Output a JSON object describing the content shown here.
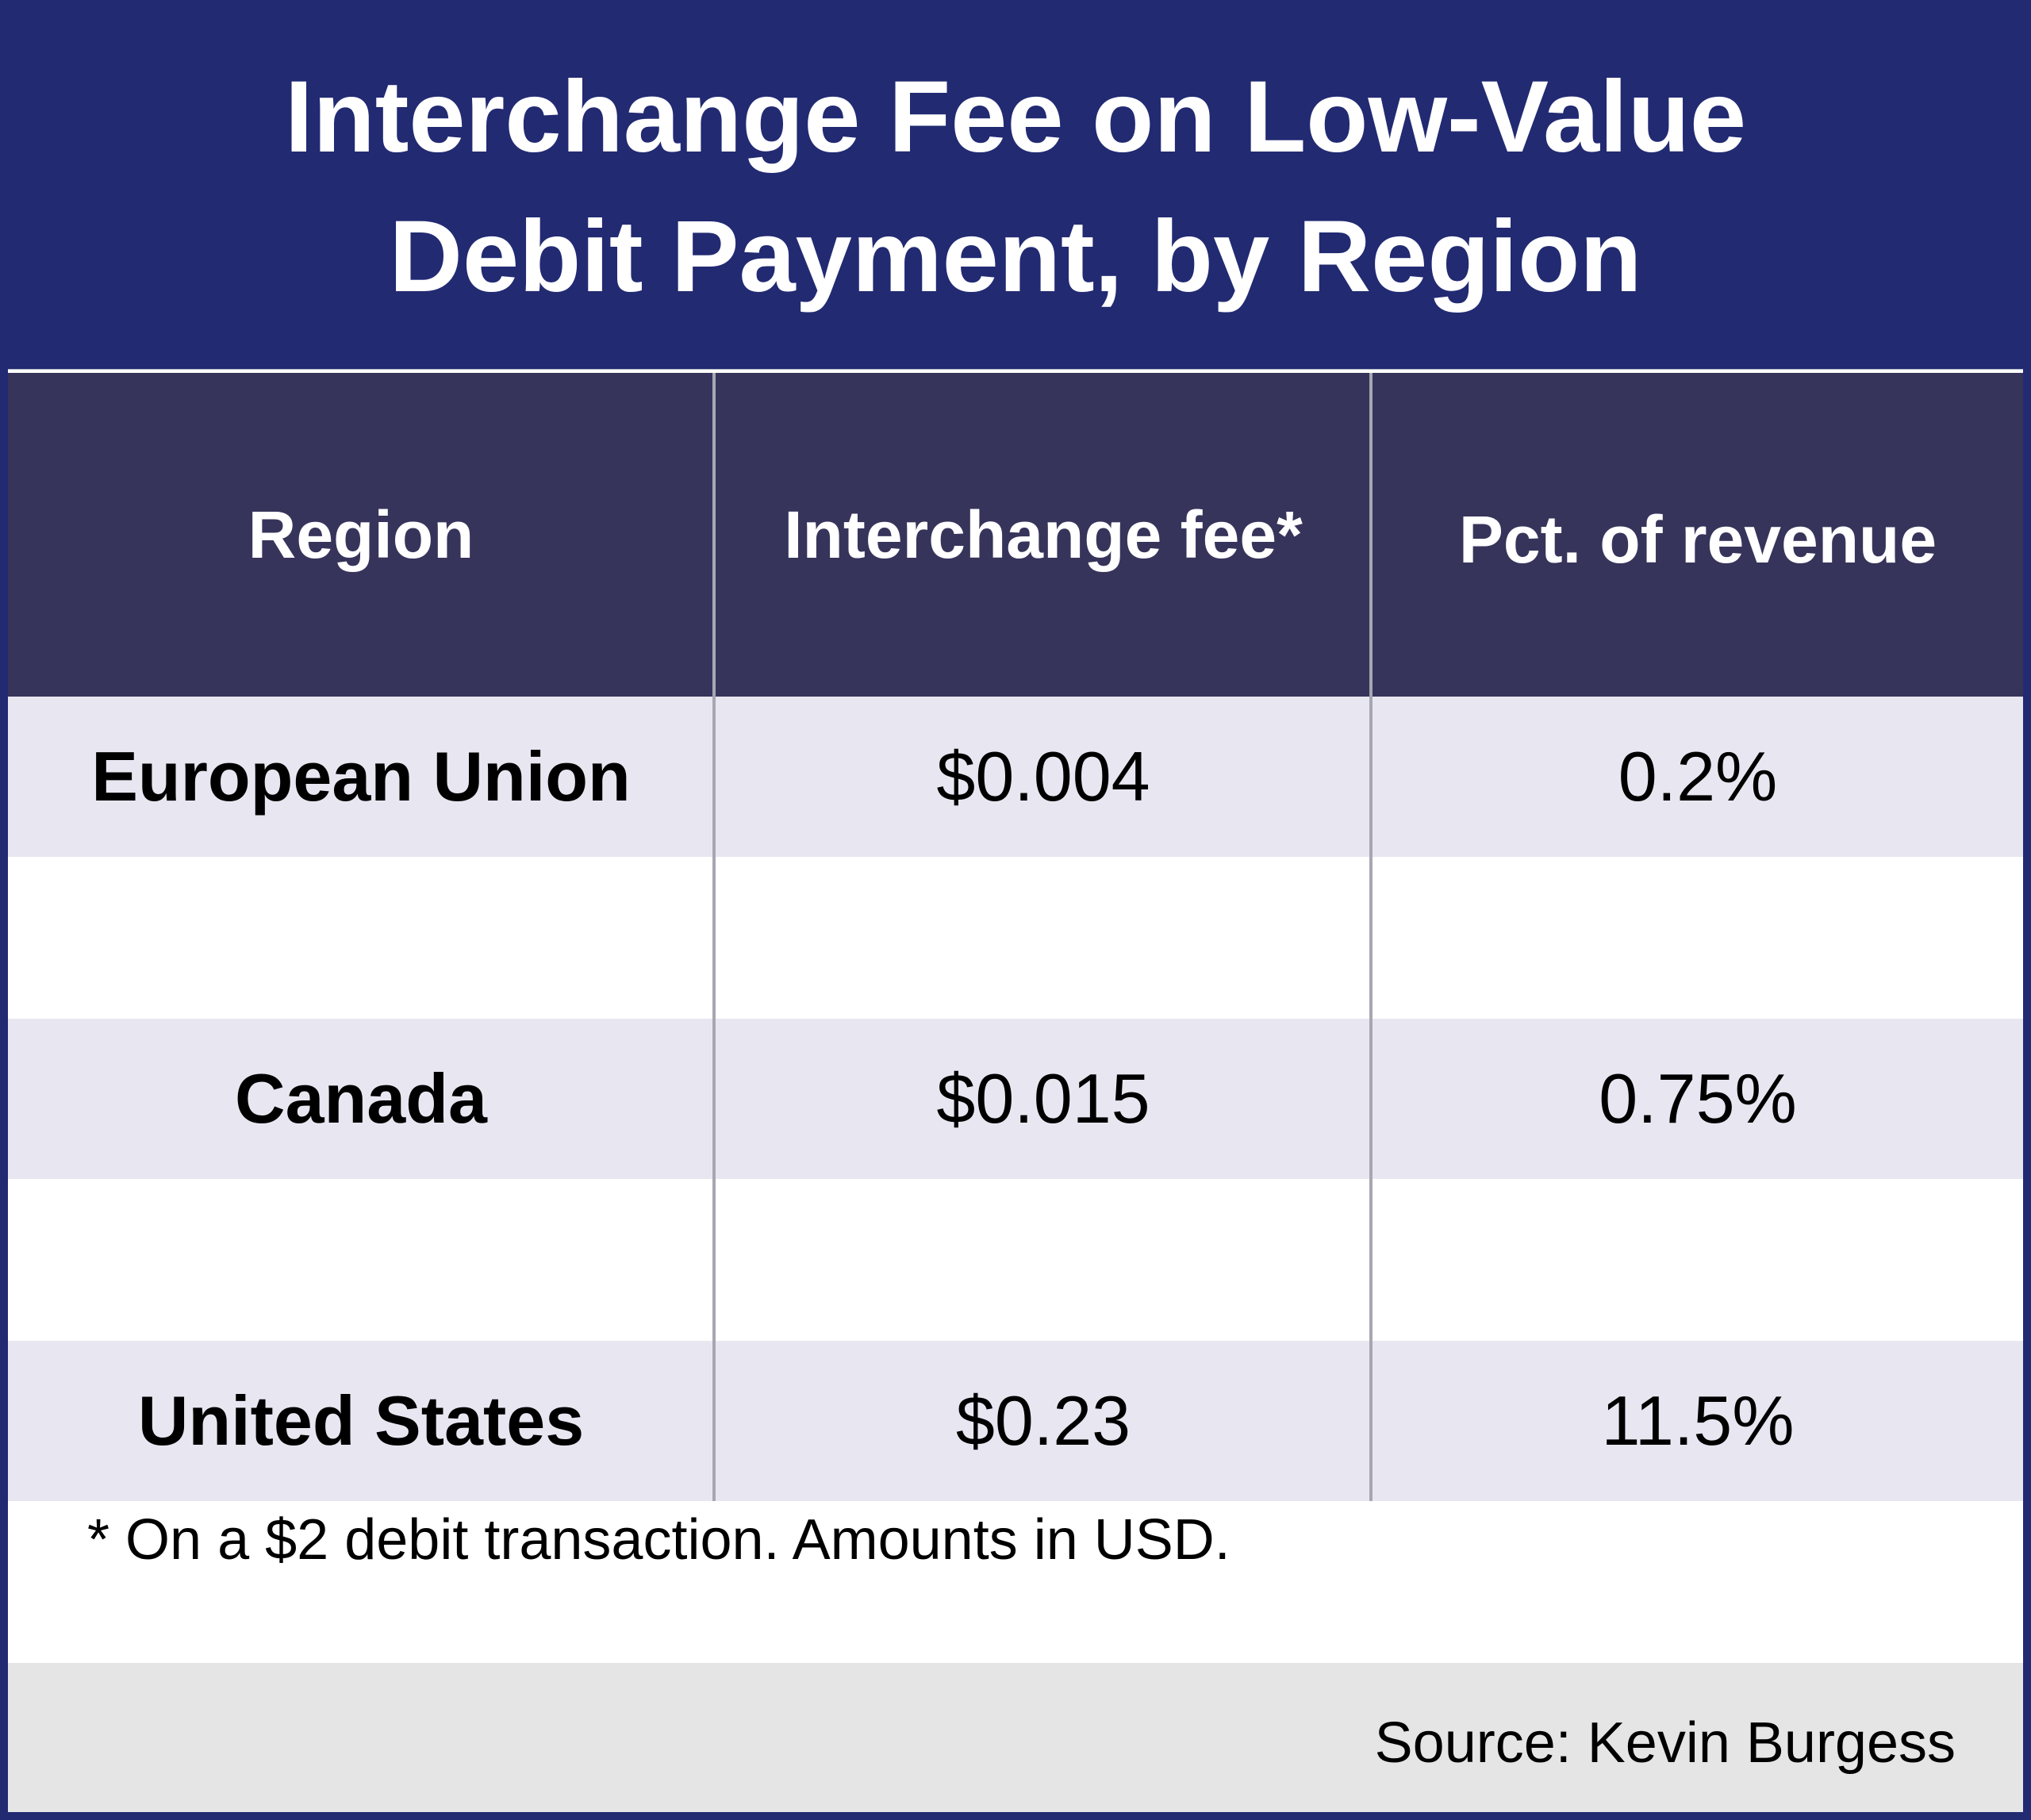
{
  "chart_data": {
    "type": "table",
    "title": "Interchange Fee on Low-Value Debit Payment, by Region",
    "title_lines": [
      "Interchange Fee on Low-Value",
      "Debit Payment, by Region"
    ],
    "columns": [
      "Region",
      "Interchange fee*",
      "Pct. of revenue"
    ],
    "rows": [
      {
        "region": "European Union",
        "fee": "$0.004",
        "pct": "0.2%"
      },
      {
        "region": "Canada",
        "fee": "$0.015",
        "pct": "0.75%"
      },
      {
        "region": "United States",
        "fee": "$0.23",
        "pct": "11.5%"
      }
    ],
    "footnote": "* On a $2 debit transaction. Amounts in USD.",
    "source": "Source: Kevin Burgess"
  },
  "colors": {
    "title_background": "#222a72",
    "header_background": "#37345b",
    "row_band": "#e8e7f1",
    "source_band": "#e5e5e5"
  }
}
